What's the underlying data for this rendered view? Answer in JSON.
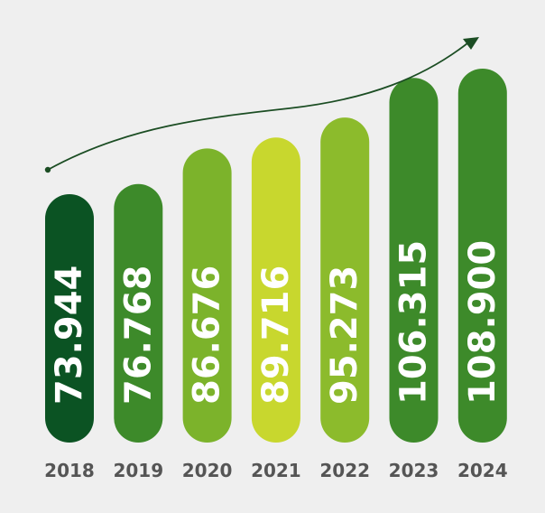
{
  "chart_data": {
    "type": "bar",
    "categories": [
      "2018",
      "2019",
      "2020",
      "2021",
      "2022",
      "2023",
      "2024"
    ],
    "values": [
      73.944,
      76.768,
      86.676,
      89.716,
      95.273,
      106.315,
      108.9
    ],
    "value_labels": [
      "73.944",
      "76.768",
      "86.676",
      "89.716",
      "95.273",
      "106.315",
      "108.900"
    ],
    "colors": [
      "#0b5323",
      "#3d8a2a",
      "#7cb32b",
      "#c8d72e",
      "#8cbb2c",
      "#3d8a2a",
      "#3d8a2a"
    ],
    "trend_arrow": true,
    "arrow_color": "#1b4d23",
    "grid": false,
    "legend": "none"
  }
}
